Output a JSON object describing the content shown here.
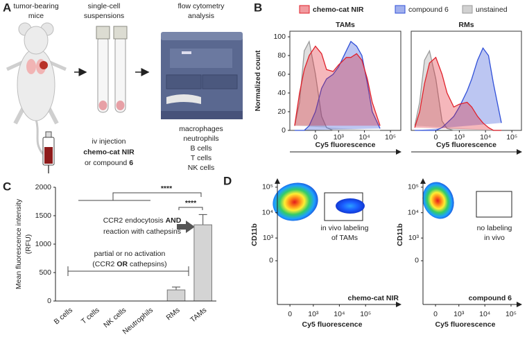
{
  "labels": {
    "a": "A",
    "b": "B",
    "c": "C",
    "d": "D"
  },
  "diagram": {
    "steps": [
      [
        "tumor-bearing",
        "mice"
      ],
      [
        "single-cell",
        "suspensions"
      ],
      [
        "flow cytometry",
        "analysis"
      ]
    ],
    "injection": [
      "iv injection",
      {
        "text": "chemo-cat NIR",
        "bold": true
      },
      [
        "or compound ",
        {
          "text": "6",
          "bold": true
        }
      ]
    ],
    "cells": [
      "macrophages",
      "neutrophils",
      "B cells",
      "T cells",
      "NK cells"
    ]
  },
  "chart_data": [
    {
      "type": "area",
      "title": "TAMs",
      "ylabel": "Normalized count",
      "xlabel": "Cy5 fluorescence",
      "xscale": "asinh",
      "xlim": [
        -1240,
        250000
      ],
      "ylim": [
        0,
        106
      ],
      "xticks": [
        0,
        {
          "value": 1000,
          "label": "10³"
        },
        {
          "value": 10000,
          "label": "10⁴"
        },
        {
          "value": 100000,
          "label": "10⁵"
        }
      ],
      "yticks": [
        0,
        20,
        40,
        60,
        80,
        100
      ],
      "x": [
        -800,
        -500,
        -300,
        -150,
        0,
        150,
        300,
        600,
        1000,
        2000,
        3000,
        5000,
        8000,
        13000,
        20000,
        40000
      ],
      "series": [
        {
          "name": "chemo-cat NIR",
          "color": "#e0202a",
          "values": [
            5,
            40,
            65,
            80,
            90,
            82,
            65,
            63,
            70,
            78,
            78,
            82,
            75,
            55,
            30,
            5
          ]
        },
        {
          "name": "compound 6",
          "color": "#2f4fd8",
          "values": [
            0,
            0,
            0,
            5,
            20,
            45,
            55,
            60,
            68,
            85,
            95,
            90,
            80,
            50,
            20,
            2
          ]
        },
        {
          "name": "unstained",
          "color": "#9a9a9a",
          "values": [
            5,
            30,
            85,
            95,
            60,
            15,
            3,
            0,
            0,
            0,
            0,
            0,
            0,
            0,
            0,
            0
          ]
        }
      ]
    },
    {
      "type": "area",
      "title": "RMs",
      "xlabel": "Cy5 fluorescence",
      "xscale": "asinh",
      "xlim": [
        -1100,
        230000
      ],
      "ylim": [
        0,
        106
      ],
      "xticks": [
        0,
        {
          "value": 1000,
          "label": "10³"
        },
        {
          "value": 10000,
          "label": "10⁴"
        },
        {
          "value": 100000,
          "label": "10⁵"
        }
      ],
      "x": [
        -800,
        -500,
        -300,
        -150,
        0,
        150,
        300,
        600,
        1000,
        2000,
        3000,
        5000,
        8000,
        13000,
        20000,
        40000
      ],
      "series": [
        {
          "color": "#e0202a",
          "values": [
            3,
            20,
            50,
            72,
            78,
            60,
            40,
            25,
            28,
            30,
            25,
            15,
            8,
            3,
            0,
            0
          ]
        },
        {
          "color": "#2f4fd8",
          "values": [
            0,
            0,
            0,
            0,
            0,
            3,
            8,
            15,
            25,
            42,
            55,
            75,
            88,
            80,
            50,
            8
          ]
        },
        {
          "color": "#9a9a9a",
          "values": [
            5,
            30,
            75,
            85,
            55,
            10,
            2,
            0,
            0,
            0,
            0,
            0,
            0,
            0,
            0,
            0
          ]
        }
      ]
    },
    {
      "type": "bar",
      "ylabel": [
        "Mean fluorescence intensity",
        "(RFU)"
      ],
      "categories": [
        "B cells",
        "T cells",
        "NK cells",
        "Neutrophils",
        "RMs",
        "TAMs"
      ],
      "values": [
        0,
        0,
        0,
        0,
        195,
        1340
      ],
      "errors": [
        0,
        0,
        0,
        0,
        50,
        180
      ],
      "color": "#d4d4d4",
      "ylim": [
        0,
        2000
      ],
      "yticks": [
        0,
        500,
        1000,
        1500,
        2000
      ],
      "significance": [
        "****",
        "****"
      ],
      "notes": {
        "upper": [
          [
            "CCR2 endocytosis ",
            {
              "text": "AND",
              "bold": true
            }
          ],
          "reaction with cathepsins"
        ],
        "lower": [
          "partial or no activation",
          [
            "(CCR2 ",
            {
              "text": "OR",
              "bold": true
            },
            " cathepsins)"
          ]
        ]
      }
    },
    {
      "type": "density",
      "xlabel": "Cy5 fluorescence",
      "ylabel": "CD11b",
      "xscale": "asinh",
      "yscale": "asinh",
      "xlim": [
        -350,
        2200000
      ],
      "ylim": [
        -6760,
        211000
      ],
      "xticks": [
        0,
        {
          "value": 1000,
          "label": "10³"
        },
        {
          "value": 10000,
          "label": "10⁴"
        },
        {
          "value": 100000,
          "label": "10⁵"
        }
      ],
      "yticks": [
        0,
        {
          "value": 1000,
          "label": "10³"
        },
        {
          "value": 10000,
          "label": "10⁴"
        },
        {
          "value": 100000,
          "label": "10⁵"
        }
      ],
      "gate_label": [
        "in vivo labeling",
        "of TAMs"
      ],
      "sample": {
        "text": "chemo-cat NIR",
        "bold": true
      }
    },
    {
      "type": "density",
      "xlabel": "Cy5 fluorescence",
      "ylabel": "CD11b",
      "xscale": "asinh",
      "yscale": "asinh",
      "xlim": [
        -350,
        250000
      ],
      "ylim": [
        -6760,
        211000
      ],
      "xticks": [
        0,
        {
          "value": 1000,
          "label": "10³"
        },
        {
          "value": 10000,
          "label": "10⁴"
        },
        {
          "value": 100000,
          "label": "10⁵"
        }
      ],
      "yticks": [
        0,
        {
          "value": 1000,
          "label": "10³"
        },
        {
          "value": 10000,
          "label": "10⁴"
        },
        {
          "value": 100000,
          "label": "10⁵"
        }
      ],
      "gate_label": [
        "no labeling",
        "in vivo"
      ],
      "sample": {
        "text": "compound 6",
        "bold": true
      }
    }
  ]
}
